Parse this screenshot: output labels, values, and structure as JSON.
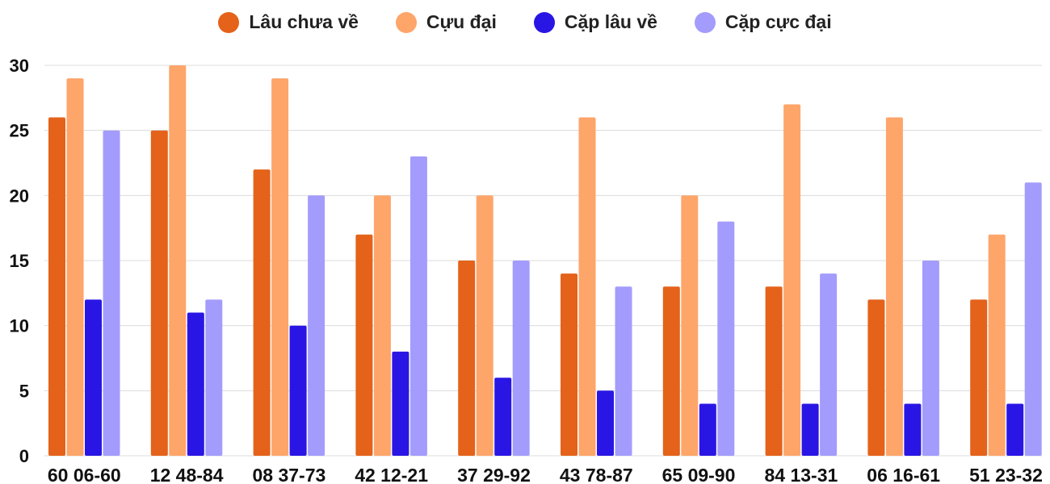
{
  "chart_data": {
    "type": "bar",
    "categories": [
      "60 06-60",
      "12 48-84",
      "08 37-73",
      "42 12-21",
      "37 29-92",
      "43 78-87",
      "65 09-90",
      "84 13-31",
      "06 16-61",
      "51 23-32"
    ],
    "series": [
      {
        "name": "Lâu chưa về",
        "color": "#e4621a",
        "values": [
          26,
          25,
          22,
          17,
          15,
          14,
          13,
          13,
          12,
          12
        ]
      },
      {
        "name": "Cựu đại",
        "color": "#fea56a",
        "values": [
          29,
          30,
          29,
          20,
          20,
          26,
          20,
          27,
          26,
          17
        ]
      },
      {
        "name": "Cặp lâu về",
        "color": "#2a16e4",
        "values": [
          12,
          11,
          10,
          8,
          6,
          5,
          4,
          4,
          4,
          4
        ]
      },
      {
        "name": "Cặp cực đại",
        "color": "#a39cfc",
        "values": [
          25,
          12,
          20,
          23,
          15,
          13,
          18,
          14,
          15,
          21
        ]
      }
    ],
    "title": "",
    "xlabel": "",
    "ylabel": "",
    "ylim": [
      0,
      30
    ],
    "yticks": [
      0,
      5,
      10,
      15,
      20,
      25,
      30
    ],
    "grid": true,
    "legend_position": "top-center"
  }
}
